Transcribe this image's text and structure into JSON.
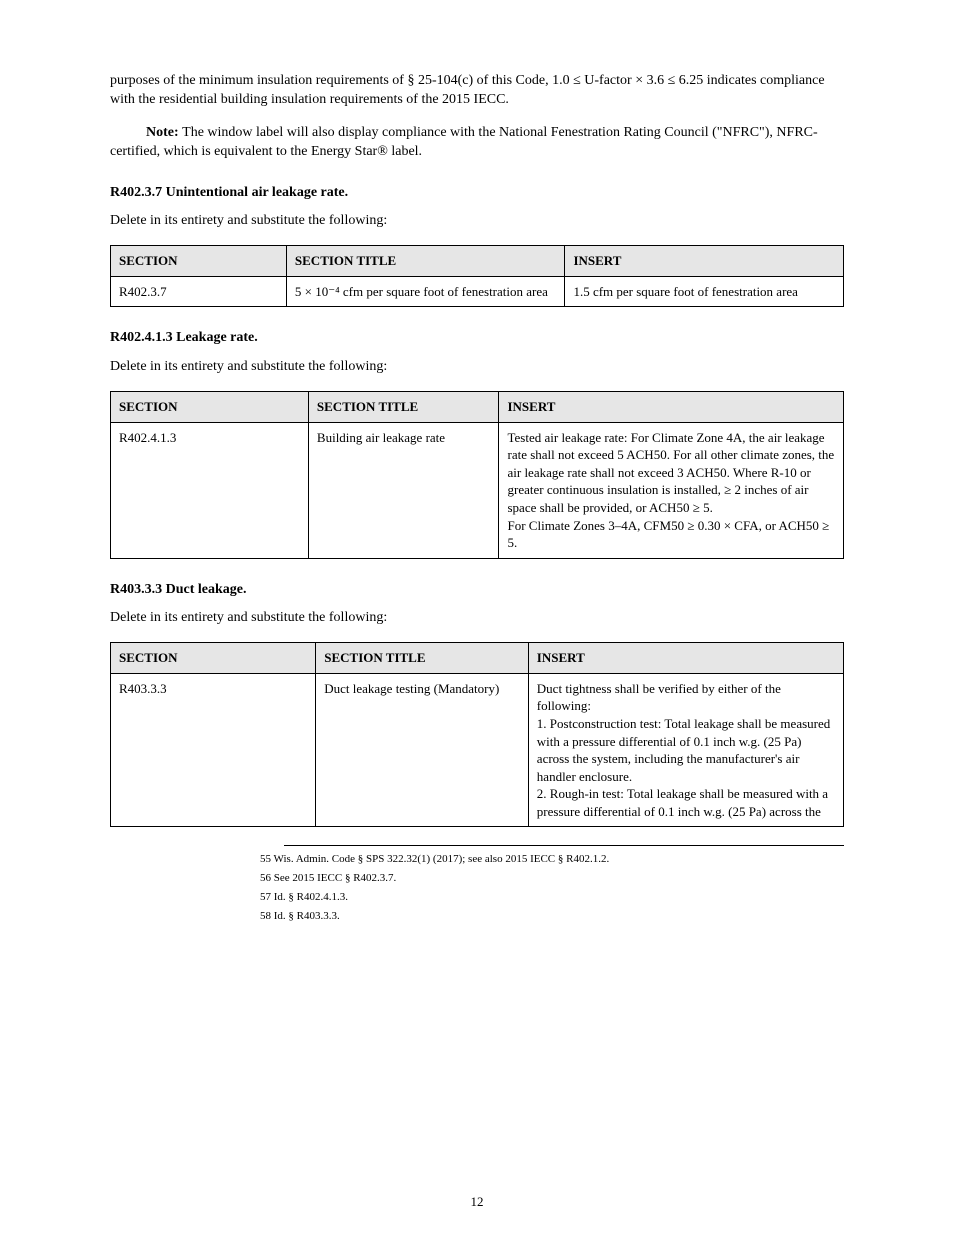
{
  "para1": "purposes of the minimum insulation requirements of § 25-104(c) of this Code, 1.0 ≤ U-factor × 3.6 ≤ 6.25 indicates compliance with the residential building insulation requirements of the 2015 IECC.",
  "para2_prefix": "",
  "para2_strong": "Note: ",
  "para2_rest": "The window label will also display compliance with the National Fenestration Rating Council (\"NFRC\"), NFRC-certified, which is equivalent to the Energy Star® label.",
  "sec1_heading": "R402.3.7 Unintentional air leakage rate.",
  "sec1_para": "Delete in its entirety and substitute the following:",
  "table1": {
    "headers": [
      "SECTION",
      "SECTION TITLE",
      "INSERT"
    ],
    "col_widths": [
      "24%",
      "38%",
      "38%"
    ],
    "rows": [
      [
        "R402.3.7",
        "5 × 10⁻⁴ cfm per square foot of fenestration area",
        "1.5 cfm per square foot of fenestration area"
      ]
    ]
  },
  "sec2_heading": "R402.4.1.3 Leakage rate.",
  "sec2_para": "Delete in its entirety and substitute the following:",
  "table2": {
    "headers": [
      "SECTION",
      "SECTION TITLE",
      "INSERT"
    ],
    "col_widths": [
      "27%",
      "26%",
      "47%"
    ],
    "rows": [
      [
        "R402.4.1.3",
        "Building air leakage rate",
        "Tested air leakage rate: For Climate Zone 4A, the air leakage rate shall not exceed 5 ACH50. For all other climate zones, the air leakage rate shall not exceed 3 ACH50. Where R-10 or greater continuous insulation is installed, ≥ 2 inches of air space shall be provided, or ACH50 ≥ 5.\nFor Climate Zones 3–4A, CFM50 ≥ 0.30 × CFA, or ACH50 ≥ 5."
      ]
    ]
  },
  "sec3_heading": "R403.3.3 Duct leakage.",
  "sec3_para": "Delete in its entirety and substitute the following:",
  "table3": {
    "headers": [
      "SECTION",
      "SECTION TITLE",
      "INSERT"
    ],
    "col_widths": [
      "28%",
      "29%",
      "43%"
    ],
    "rows": [
      [
        "R403.3.3",
        "Duct leakage testing (Mandatory)",
        "Duct tightness shall be verified by either of the following:\n1. Postconstruction test: Total leakage shall be measured with a pressure differential of 0.1 inch w.g. (25 Pa) across the system, including the manufacturer's air handler enclosure.\n2. Rough-in test: Total leakage shall be measured with a pressure differential of 0.1 inch w.g. (25 Pa) across the"
      ]
    ]
  },
  "footnotes": [
    "55 Wis. Admin. Code § SPS 322.32(1) (2017); see also 2015 IECC § R402.1.2.",
    "56 See 2015 IECC § R402.3.7.",
    "57 Id. § R402.4.1.3.",
    "58 Id. § R403.3.3."
  ],
  "page_number": "12"
}
